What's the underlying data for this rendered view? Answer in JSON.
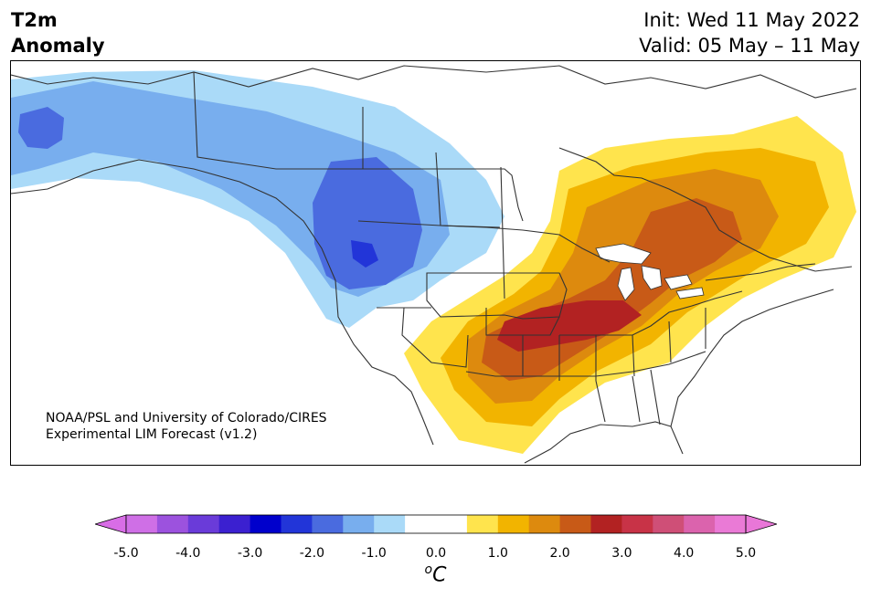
{
  "header": {
    "variable": "T2m",
    "quantity": "Anomaly",
    "init": "Init: Wed 11 May 2022",
    "valid": "Valid: 05 May – 11 May"
  },
  "map": {
    "region": "North America",
    "credit_line1": "NOAA/PSL and University of Colorado/CIRES",
    "credit_line2": "Experimental LIM Forecast (v1.2)"
  },
  "colorbar": {
    "unit_prefix": "o",
    "unit_symbol": "C",
    "tick_labels": [
      "-5.0",
      "-4.0",
      "-3.0",
      "-2.0",
      "-1.0",
      "0.0",
      "1.0",
      "2.0",
      "3.0",
      "4.0",
      "5.0"
    ],
    "colors": [
      "#cf6fe6",
      "#9c52de",
      "#6a3bd9",
      "#3b20d0",
      "#0000cc",
      "#2235d8",
      "#4a6bdf",
      "#78aeee",
      "#aadaf8",
      "#ffffff",
      "#ffffff",
      "#ffe44d",
      "#f2b400",
      "#dd8a0e",
      "#c85a17",
      "#b22222",
      "#c83347",
      "#cf4f77",
      "#db63ad",
      "#ea7ad6"
    ],
    "extend_low": "#d86de6",
    "extend_high": "#e977d8"
  }
}
